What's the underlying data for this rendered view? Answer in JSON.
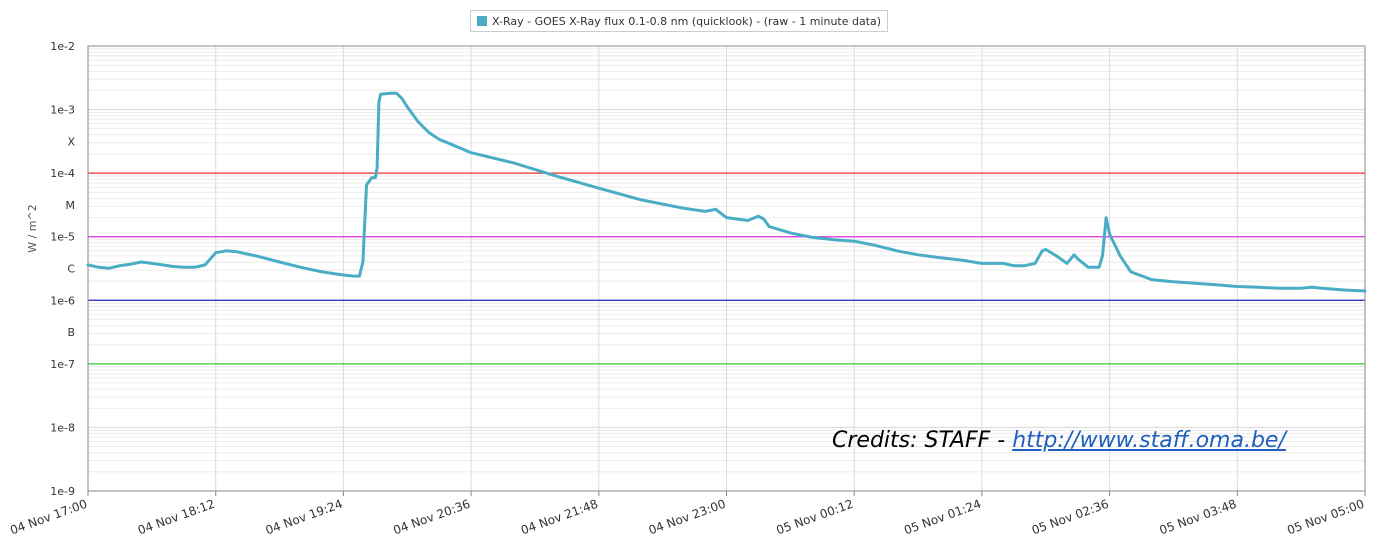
{
  "legend": {
    "label": "X-Ray - GOES X-Ray flux 0.1-0.8 nm (quicklook) -  (raw - 1 minute data)",
    "color": "#4bacc6"
  },
  "credits": {
    "prefix": "Credits: STAFF - ",
    "link": "http://www.staff.oma.be/"
  },
  "chart_data": {
    "type": "line",
    "ylabel": "W / m^2",
    "yscale": "log",
    "ylim": [
      1e-09,
      0.01
    ],
    "y_ticks": [
      {
        "value": 0.01,
        "label": "1e-2"
      },
      {
        "value": 0.001,
        "label": "1e-3"
      },
      {
        "value": 0.000316,
        "label": "X"
      },
      {
        "value": 0.0001,
        "label": "1e-4"
      },
      {
        "value": 3.16e-05,
        "label": "M"
      },
      {
        "value": 1e-05,
        "label": "1e-5"
      },
      {
        "value": 3.16e-06,
        "label": "C"
      },
      {
        "value": 1e-06,
        "label": "1e-6"
      },
      {
        "value": 3.16e-07,
        "label": "B"
      },
      {
        "value": 1e-07,
        "label": "1e-7"
      },
      {
        "value": 1e-08,
        "label": "1e-8"
      },
      {
        "value": 1e-09,
        "label": "1e-9"
      }
    ],
    "x_ticks": [
      "04 Nov 17:00",
      "04 Nov 18:12",
      "04 Nov 19:24",
      "04 Nov 20:36",
      "04 Nov 21:48",
      "04 Nov 23:00",
      "05 Nov 00:12",
      "05 Nov 01:24",
      "05 Nov 02:36",
      "05 Nov 03:48",
      "05 Nov 05:00"
    ],
    "xlim": [
      "04 Nov 17:00",
      "05 Nov 05:00"
    ],
    "threshold_lines": [
      {
        "value": 0.0001,
        "color": "#ee3333"
      },
      {
        "value": 1e-05,
        "color": "#dd33dd"
      },
      {
        "value": 1e-06,
        "color": "#2222cc"
      },
      {
        "value": 1e-07,
        "color": "#33cc33"
      }
    ],
    "series": [
      {
        "name": "X-Ray - GOES X-Ray flux 0.1-0.8 nm (quicklook) -  (raw - 1 minute data)",
        "color": "#4bacc6",
        "x": [
          "04 Nov 17:00",
          "04 Nov 17:06",
          "04 Nov 17:12",
          "04 Nov 17:18",
          "04 Nov 17:24",
          "04 Nov 17:30",
          "04 Nov 17:36",
          "04 Nov 17:42",
          "04 Nov 17:48",
          "04 Nov 17:54",
          "04 Nov 18:00",
          "04 Nov 18:06",
          "04 Nov 18:12",
          "04 Nov 18:18",
          "04 Nov 18:24",
          "04 Nov 18:36",
          "04 Nov 18:48",
          "04 Nov 19:00",
          "04 Nov 19:12",
          "04 Nov 19:24",
          "04 Nov 19:30",
          "04 Nov 19:33",
          "04 Nov 19:35",
          "04 Nov 19:37",
          "04 Nov 19:40",
          "04 Nov 19:42",
          "04 Nov 19:43",
          "04 Nov 19:44",
          "04 Nov 19:45",
          "04 Nov 19:51",
          "04 Nov 19:54",
          "04 Nov 19:57",
          "04 Nov 20:00",
          "04 Nov 20:06",
          "04 Nov 20:12",
          "04 Nov 20:18",
          "04 Nov 20:24",
          "04 Nov 20:36",
          "04 Nov 21:00",
          "04 Nov 21:24",
          "04 Nov 21:48",
          "04 Nov 22:12",
          "04 Nov 22:36",
          "04 Nov 22:48",
          "04 Nov 22:54",
          "04 Nov 22:57",
          "04 Nov 23:00",
          "04 Nov 23:12",
          "04 Nov 23:18",
          "04 Nov 23:21",
          "04 Nov 23:24",
          "04 Nov 23:36",
          "04 Nov 23:48",
          "05 Nov 00:00",
          "05 Nov 00:12",
          "05 Nov 00:24",
          "05 Nov 00:36",
          "05 Nov 00:48",
          "05 Nov 01:00",
          "05 Nov 01:12",
          "05 Nov 01:24",
          "05 Nov 01:36",
          "05 Nov 01:42",
          "05 Nov 01:48",
          "05 Nov 01:54",
          "05 Nov 01:58",
          "05 Nov 02:00",
          "05 Nov 02:06",
          "05 Nov 02:12",
          "05 Nov 02:16",
          "05 Nov 02:18",
          "05 Nov 02:24",
          "05 Nov 02:30",
          "05 Nov 02:32",
          "05 Nov 02:34",
          "05 Nov 02:36",
          "05 Nov 02:42",
          "05 Nov 02:48",
          "05 Nov 03:00",
          "05 Nov 03:12",
          "05 Nov 03:24",
          "05 Nov 03:36",
          "05 Nov 03:48",
          "05 Nov 04:00",
          "05 Nov 04:12",
          "05 Nov 04:24",
          "05 Nov 04:30",
          "05 Nov 04:36",
          "05 Nov 04:48",
          "05 Nov 05:00"
        ],
        "y": [
          3.6e-06,
          3.3e-06,
          3.2e-06,
          3.5e-06,
          3.7e-06,
          4e-06,
          3.8e-06,
          3.6e-06,
          3.4e-06,
          3.3e-06,
          3.3e-06,
          3.6e-06,
          5.6e-06,
          6e-06,
          5.8e-06,
          4.9e-06,
          4e-06,
          3.3e-06,
          2.8e-06,
          2.5e-06,
          2.4e-06,
          2.4e-06,
          4e-06,
          6.5e-05,
          8.5e-05,
          8.5e-05,
          0.00012,
          0.0013,
          0.00175,
          0.0018,
          0.0018,
          0.0015,
          0.0011,
          0.00065,
          0.00044,
          0.00034,
          0.00029,
          0.00021,
          0.000145,
          9e-05,
          5.8e-05,
          3.8e-05,
          2.8e-05,
          2.5e-05,
          2.7e-05,
          2.3e-05,
          2e-05,
          1.8e-05,
          2.1e-05,
          1.9e-05,
          1.45e-05,
          1.15e-05,
          9.8e-06,
          9e-06,
          8.5e-06,
          7.3e-06,
          6e-06,
          5.2e-06,
          4.7e-06,
          4.3e-06,
          3.8e-06,
          3.8e-06,
          3.5e-06,
          3.5e-06,
          3.8e-06,
          6e-06,
          6.3e-06,
          5e-06,
          3.8e-06,
          5.2e-06,
          4.5e-06,
          3.3e-06,
          3.3e-06,
          5e-06,
          2e-05,
          1.1e-05,
          5e-06,
          2.8e-06,
          2.1e-06,
          1.95e-06,
          1.85e-06,
          1.75e-06,
          1.65e-06,
          1.6e-06,
          1.55e-06,
          1.55e-06,
          1.6e-06,
          1.55e-06,
          1.45e-06,
          1.4e-06
        ]
      }
    ]
  }
}
